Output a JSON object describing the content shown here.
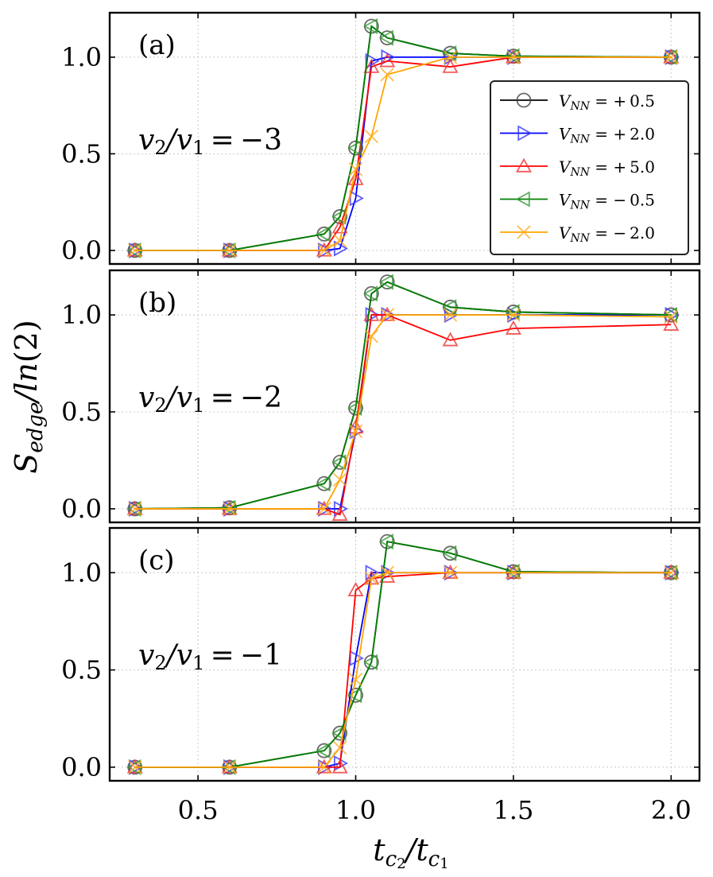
{
  "chart_data": {
    "type": "line",
    "xlabel": "t_c2 / t_c1",
    "ylabel": "S_edge / ln(2)",
    "xlim": [
      0.22,
      2.09
    ],
    "ylim": [
      -0.07,
      1.23
    ],
    "x_ticks": [
      0.5,
      1.0,
      1.5,
      2.0
    ],
    "x_tick_labels": [
      "0.5",
      "1.0",
      "1.5",
      "2.0"
    ],
    "y_ticks": [
      0.0,
      0.5,
      1.0
    ],
    "y_tick_labels": [
      "0.0",
      "0.5",
      "1.0"
    ],
    "grid": true,
    "legend_placement": "right (panel a)",
    "series_styles": [
      {
        "key": "p05",
        "label": "V_NN = +0.5",
        "marker": "circle",
        "color": "#000000",
        "marker_color": "#444444",
        "line_color": "#000000"
      },
      {
        "key": "p20",
        "label": "V_NN = +2.0",
        "marker": "triangle-right",
        "color": "#0000ff",
        "marker_color": "#3333ff",
        "line_color": "#0000ff"
      },
      {
        "key": "p50",
        "label": "V_NN = +5.0",
        "marker": "triangle-up",
        "color": "#ff0000",
        "marker_color": "#ee3333",
        "line_color": "#ff0000"
      },
      {
        "key": "m05",
        "label": "V_NN = −0.5",
        "marker": "triangle-left",
        "color": "#008000",
        "marker_color": "#339933",
        "line_color": "#008000"
      },
      {
        "key": "m20",
        "label": "V_NN = −2.0",
        "marker": "x",
        "color": "#ffa500",
        "marker_color": "#ffaa22",
        "line_color": "#ffa500"
      }
    ],
    "panels": [
      {
        "label": "(a)",
        "annotation": "v2/v1 = −3",
        "series": {
          "p05": {
            "x": [
              0.3,
              0.6,
              0.9,
              0.95,
              1.0,
              1.05,
              1.1,
              1.3,
              1.5,
              2.0
            ],
            "y": [
              0.0,
              0.0,
              0.085,
              0.175,
              0.53,
              1.16,
              1.1,
              1.02,
              1.005,
              1.0
            ]
          },
          "p20": {
            "x": [
              0.3,
              0.6,
              0.9,
              0.95,
              1.0,
              1.05,
              1.1,
              1.3,
              1.5,
              2.0
            ],
            "y": [
              0.0,
              0.0,
              0.0,
              0.01,
              0.27,
              0.98,
              1.0,
              1.0,
              1.0,
              1.0
            ]
          },
          "p50": {
            "x": [
              0.3,
              0.6,
              0.9,
              0.95,
              1.0,
              1.05,
              1.1,
              1.3,
              1.5,
              2.0
            ],
            "y": [
              0.0,
              0.0,
              0.0,
              0.12,
              0.37,
              0.95,
              0.98,
              0.95,
              1.0,
              1.0
            ]
          },
          "m05": {
            "x": [
              0.3,
              0.6,
              0.9,
              0.95,
              1.0,
              1.05,
              1.1,
              1.3,
              1.5,
              2.0
            ],
            "y": [
              0.0,
              0.0,
              0.085,
              0.175,
              0.53,
              1.16,
              1.1,
              1.02,
              1.005,
              1.0
            ]
          },
          "m20": {
            "x": [
              0.3,
              0.6,
              0.9,
              0.95,
              1.0,
              1.05,
              1.1,
              1.3,
              1.5,
              2.0
            ],
            "y": [
              0.0,
              0.0,
              0.0,
              0.05,
              0.42,
              0.59,
              0.91,
              1.0,
              1.0,
              1.0
            ]
          }
        }
      },
      {
        "label": "(b)",
        "annotation": "v2/v1 = −2",
        "series": {
          "p05": {
            "x": [
              0.3,
              0.6,
              0.9,
              0.95,
              1.0,
              1.05,
              1.1,
              1.3,
              1.5,
              2.0
            ],
            "y": [
              0.0,
              0.005,
              0.13,
              0.24,
              0.52,
              1.11,
              1.17,
              1.04,
              1.015,
              1.0
            ]
          },
          "p20": {
            "x": [
              0.3,
              0.6,
              0.9,
              0.95,
              1.0,
              1.05,
              1.1,
              1.3,
              1.5,
              2.0
            ],
            "y": [
              0.0,
              0.0,
              0.0,
              0.0,
              0.4,
              1.0,
              1.0,
              1.0,
              1.0,
              1.0
            ]
          },
          "p50": {
            "x": [
              0.3,
              0.6,
              0.9,
              0.95,
              1.0,
              1.05,
              1.1,
              1.3,
              1.5,
              2.0
            ],
            "y": [
              0.0,
              0.0,
              0.0,
              -0.03,
              0.42,
              1.0,
              1.0,
              0.87,
              0.93,
              0.95
            ]
          },
          "m05": {
            "x": [
              0.3,
              0.6,
              0.9,
              0.95,
              1.0,
              1.05,
              1.1,
              1.3,
              1.5,
              2.0
            ],
            "y": [
              0.0,
              0.005,
              0.13,
              0.24,
              0.52,
              1.11,
              1.17,
              1.04,
              1.015,
              1.0
            ]
          },
          "m20": {
            "x": [
              0.3,
              0.6,
              0.9,
              0.95,
              1.0,
              1.05,
              1.1,
              1.3,
              1.5,
              2.0
            ],
            "y": [
              0.0,
              0.0,
              0.0,
              0.15,
              0.4,
              0.89,
              1.0,
              1.0,
              1.0,
              0.99
            ]
          }
        }
      },
      {
        "label": "(c)",
        "annotation": "v2/v1 = −1",
        "series": {
          "p05": {
            "x": [
              0.3,
              0.6,
              0.9,
              0.95,
              1.0,
              1.05,
              1.1,
              1.3,
              1.5,
              2.0
            ],
            "y": [
              0.0,
              0.0,
              0.085,
              0.175,
              0.37,
              0.54,
              1.16,
              1.1,
              1.005,
              1.0
            ]
          },
          "p20": {
            "x": [
              0.3,
              0.6,
              0.9,
              0.95,
              1.0,
              1.05,
              1.1,
              1.3,
              1.5,
              2.0
            ],
            "y": [
              0.0,
              0.0,
              0.0,
              0.02,
              0.56,
              1.0,
              1.0,
              1.0,
              1.0,
              1.0
            ]
          },
          "p50": {
            "x": [
              0.3,
              0.6,
              0.9,
              0.95,
              1.0,
              1.05,
              1.1,
              1.3,
              1.5,
              2.0
            ],
            "y": [
              0.0,
              0.0,
              0.0,
              0.0,
              0.91,
              0.97,
              0.98,
              1.0,
              1.0,
              1.0
            ]
          },
          "m05": {
            "x": [
              0.3,
              0.6,
              0.9,
              0.95,
              1.0,
              1.05,
              1.1,
              1.3,
              1.5,
              2.0
            ],
            "y": [
              0.0,
              0.0,
              0.085,
              0.175,
              0.37,
              0.54,
              1.16,
              1.1,
              1.005,
              1.0
            ]
          },
          "m20": {
            "x": [
              0.3,
              0.6,
              0.9,
              0.95,
              1.0,
              1.05,
              1.1,
              1.3,
              1.5,
              2.0
            ],
            "y": [
              0.0,
              0.0,
              0.0,
              0.1,
              0.45,
              0.97,
              1.0,
              1.0,
              1.0,
              1.0
            ]
          }
        }
      }
    ]
  }
}
